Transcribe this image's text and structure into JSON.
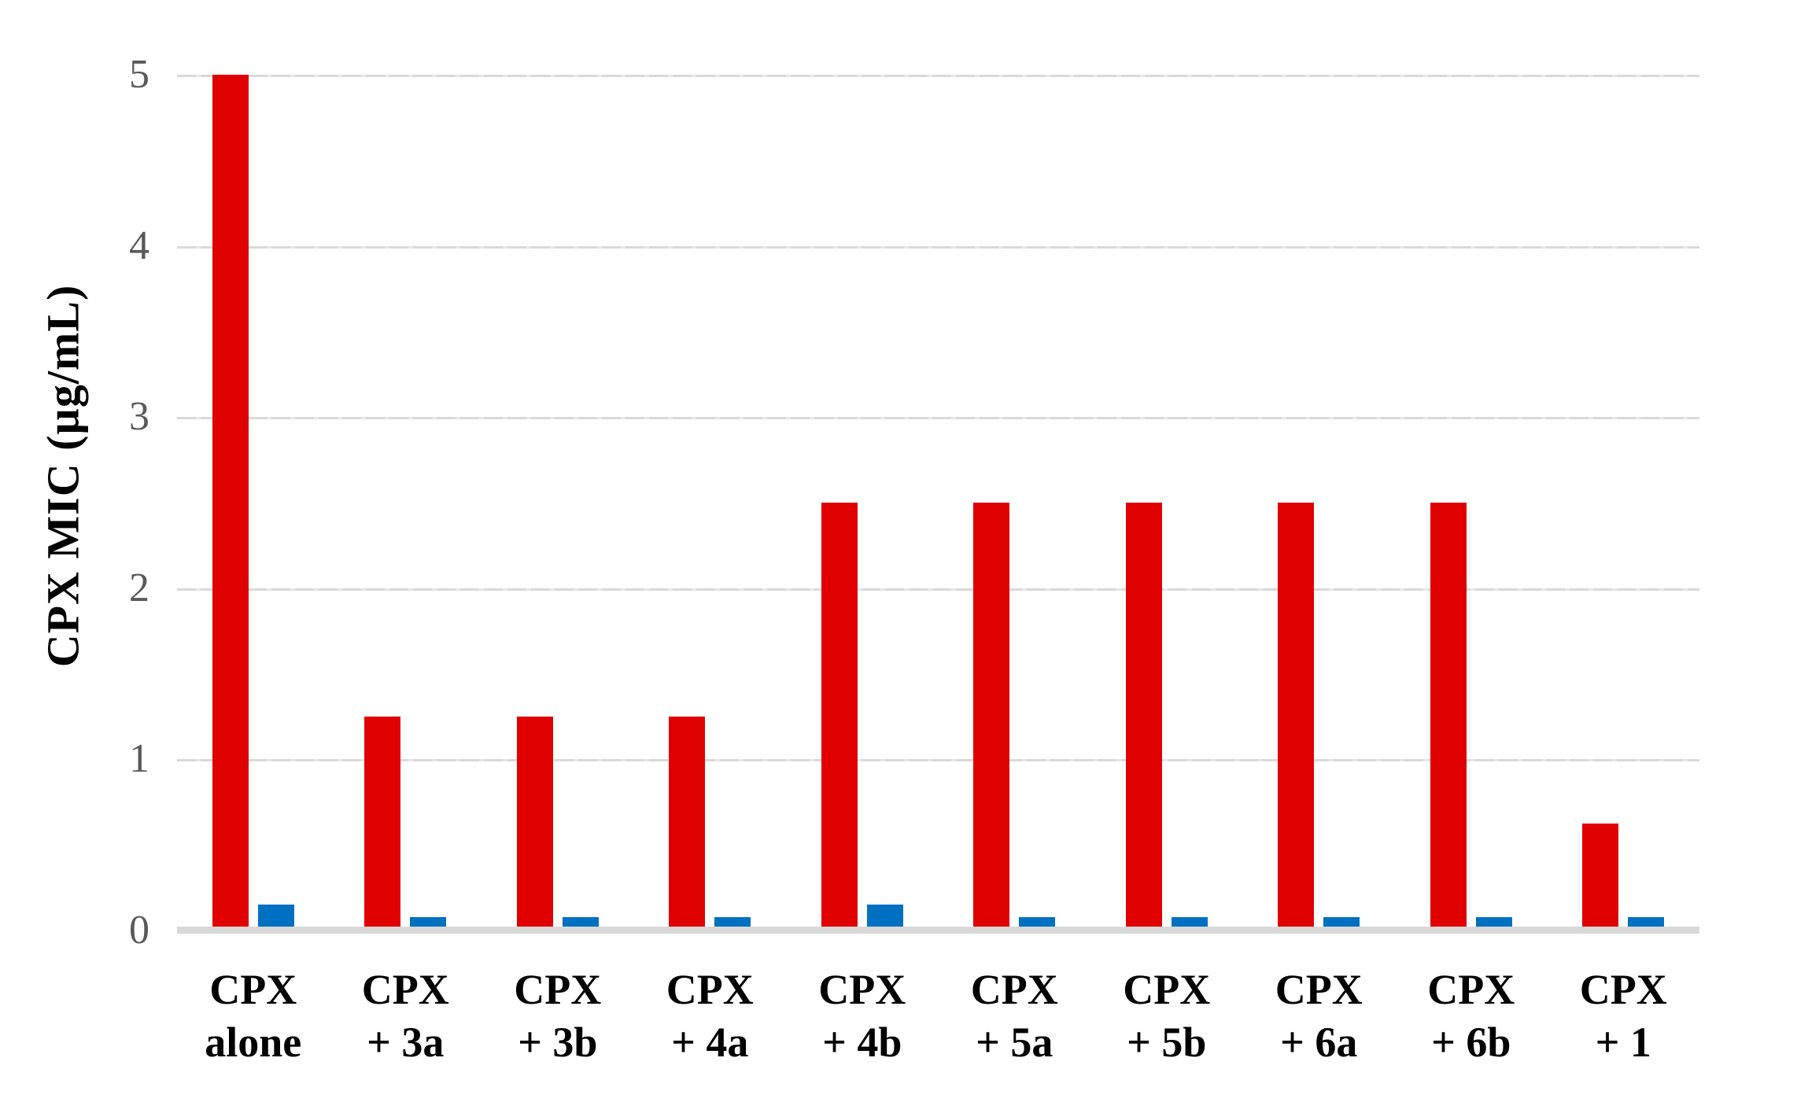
{
  "chart_data": {
    "type": "bar",
    "title": "",
    "xlabel": "",
    "ylabel": "CPX MIC (µg/mL)",
    "ylim": [
      0,
      5
    ],
    "yticks": [
      0,
      1,
      2,
      3,
      4,
      5
    ],
    "grid": "horizontal light gray lines at each integer tick",
    "legend_position": "none",
    "categories": [
      "CPX alone",
      "CPX + 3a",
      "CPX + 3b",
      "CPX + 4a",
      "CPX + 4b",
      "CPX + 5a",
      "CPX + 5b",
      "CPX + 6a",
      "CPX + 6b",
      "CPX + 1"
    ],
    "category_label_lines": [
      [
        "CPX",
        "alone"
      ],
      [
        "CPX",
        "+ 3a"
      ],
      [
        "CPX",
        "+ 3b"
      ],
      [
        "CPX",
        "+ 4a"
      ],
      [
        "CPX",
        "+ 4b"
      ],
      [
        "CPX",
        "+ 5a"
      ],
      [
        "CPX",
        "+ 5b"
      ],
      [
        "CPX",
        "+ 6a"
      ],
      [
        "CPX",
        "+ 6b"
      ],
      [
        "CPX",
        "+ 1"
      ]
    ],
    "series": [
      {
        "name": "red-series",
        "color": "#e00000",
        "values": [
          5,
          1.25,
          1.25,
          1.25,
          2.5,
          2.5,
          2.5,
          2.5,
          2.5,
          0.625
        ]
      },
      {
        "name": "blue-series",
        "color": "#0070c0",
        "values": [
          0.15,
          0.08,
          0.08,
          0.08,
          0.15,
          0.08,
          0.08,
          0.08,
          0.08,
          0.08
        ]
      }
    ],
    "colors": {
      "gridline": "#d9d9d9",
      "axis_line": "#d9d9d9",
      "tick_label": "#595959",
      "category_label": "#000000",
      "axis_title": "#000000",
      "background": "#ffffff"
    }
  }
}
